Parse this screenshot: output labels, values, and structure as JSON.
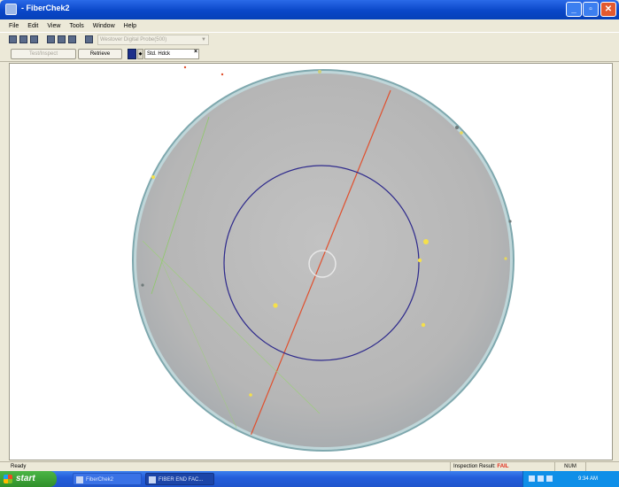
{
  "window": {
    "title": "- FiberChek2"
  },
  "menu": [
    "File",
    "Edit",
    "View",
    "Tools",
    "Window",
    "Help"
  ],
  "toolbar": {
    "device_label": "Westover Digital Probe(500)",
    "test_label": "Test/Inspect",
    "retrieve_label": "Retrieve",
    "mode_label": "Std. Hdck"
  },
  "status": {
    "ready": "Ready",
    "result_label": "Inspection Result:",
    "result_value": "FAIL",
    "num": "NUM"
  },
  "taskbar": {
    "start_label": "start",
    "tasks": [
      "FiberChek2",
      "FIBER END FAC..."
    ],
    "clock": "9:34 AM"
  },
  "colors": {
    "titlebar": "#0a47c8",
    "fiber_face": "#b8b8b8",
    "zone_circle": "#2e2a8c",
    "scratch_line": "#e0502e",
    "defect": "#f5e04a",
    "fail_text": "#e02a1a"
  },
  "icons": [
    "new-icon",
    "open-icon",
    "save-icon",
    "cut-icon",
    "print-icon",
    "help-icon",
    "device-icon"
  ]
}
